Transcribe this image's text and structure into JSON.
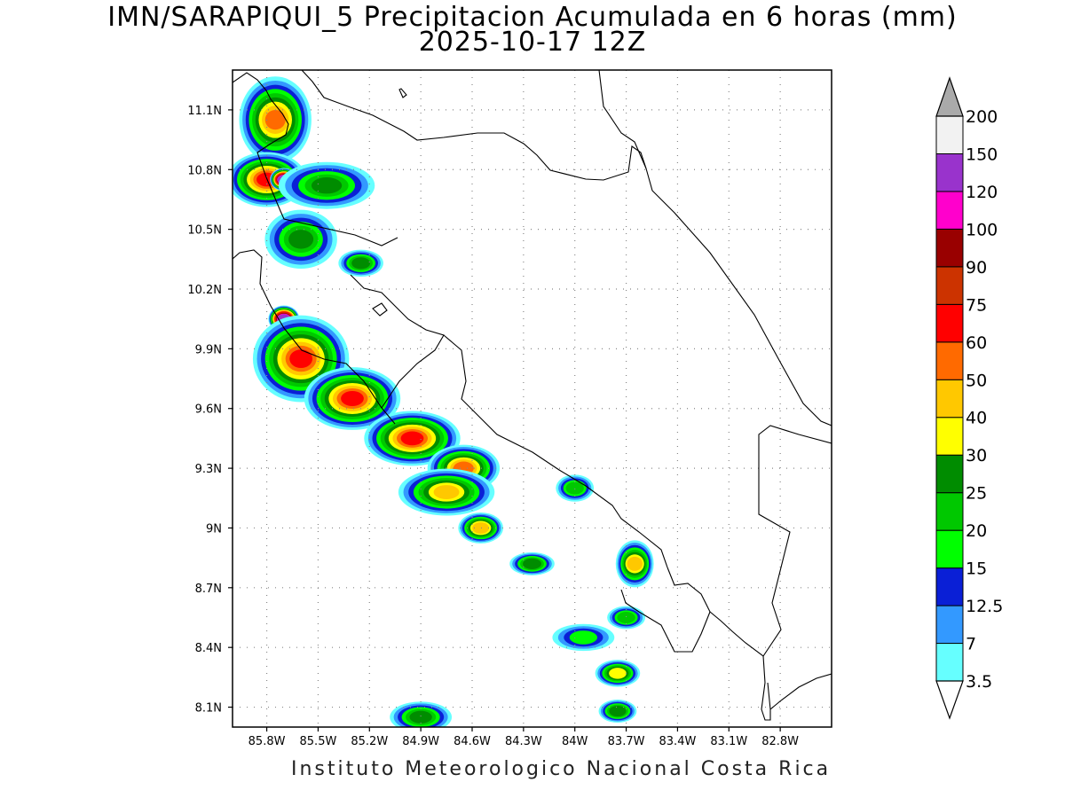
{
  "title": {
    "line1": "IMN/SARAPIQUI_5 Precipitacion Acumulada en 6 horas (mm)",
    "line2": "2025-10-17 12Z"
  },
  "footer": "Instituto Meteorologico Nacional Costa Rica",
  "map": {
    "region": "Costa Rica",
    "lon_range": [
      -86.0,
      -82.5
    ],
    "lat_range": [
      8.0,
      11.3
    ],
    "grid": true,
    "lat_ticks": [
      "11.1N",
      "10.8N",
      "10.5N",
      "10.2N",
      "9.9N",
      "9.6N",
      "9.3N",
      "9N",
      "8.7N",
      "8.4N",
      "8.1N"
    ],
    "lon_ticks": [
      "85.8W",
      "85.5W",
      "85.2W",
      "84.9W",
      "84.6W",
      "84.3W",
      "84W",
      "83.7W",
      "83.4W",
      "83.1W",
      "82.8W"
    ]
  },
  "colorbar": {
    "unit": "mm",
    "levels": [
      "3.5",
      "7",
      "12.5",
      "15",
      "20",
      "25",
      "30",
      "40",
      "50",
      "60",
      "75",
      "90",
      "100",
      "120",
      "150",
      "200"
    ],
    "colors": [
      "#66ffff",
      "#3399ff",
      "#0a1fd6",
      "#00ff00",
      "#00c800",
      "#008c00",
      "#ffff00",
      "#ffc800",
      "#ff6a00",
      "#ff0000",
      "#cc3300",
      "#990000",
      "#ff00cc",
      "#9933cc",
      "#f2f2f2"
    ],
    "extension_colors": {
      "low": "#ffffff",
      "high": "#aaaaaa"
    }
  },
  "chart_data": {
    "type": "heatmap",
    "title": "IMN/SARAPIQUI_5 Precipitacion Acumulada en 6 horas (mm)",
    "subtitle": "2025-10-17 12Z",
    "xlabel": "",
    "ylabel": "",
    "xlim": [
      -86.0,
      -82.5
    ],
    "ylim": [
      8.0,
      11.3
    ],
    "rain_cells": [
      {
        "lon": -85.75,
        "lat": 11.05,
        "rx": 0.18,
        "ry": 0.2,
        "level": 8
      },
      {
        "lon": -85.8,
        "lat": 10.75,
        "rx": 0.2,
        "ry": 0.12,
        "level": 9
      },
      {
        "lon": -85.7,
        "lat": 10.75,
        "rx": 0.05,
        "ry": 0.04,
        "level": 13
      },
      {
        "lon": -85.45,
        "lat": 10.72,
        "rx": 0.25,
        "ry": 0.1,
        "level": 5
      },
      {
        "lon": -85.6,
        "lat": 10.45,
        "rx": 0.18,
        "ry": 0.13,
        "level": 5
      },
      {
        "lon": -85.25,
        "lat": 10.33,
        "rx": 0.1,
        "ry": 0.05,
        "level": 5
      },
      {
        "lon": -85.7,
        "lat": 10.05,
        "rx": 0.06,
        "ry": 0.05,
        "level": 13
      },
      {
        "lon": -85.6,
        "lat": 9.85,
        "rx": 0.25,
        "ry": 0.2,
        "level": 9
      },
      {
        "lon": -85.3,
        "lat": 9.65,
        "rx": 0.25,
        "ry": 0.14,
        "level": 9
      },
      {
        "lon": -84.95,
        "lat": 9.45,
        "rx": 0.25,
        "ry": 0.12,
        "level": 9
      },
      {
        "lon": -84.65,
        "lat": 9.3,
        "rx": 0.18,
        "ry": 0.1,
        "level": 8
      },
      {
        "lon": -84.75,
        "lat": 9.18,
        "rx": 0.25,
        "ry": 0.1,
        "level": 7
      },
      {
        "lon": -84.55,
        "lat": 9.0,
        "rx": 0.1,
        "ry": 0.06,
        "level": 7
      },
      {
        "lon": -84.25,
        "lat": 8.82,
        "rx": 0.1,
        "ry": 0.04,
        "level": 5
      },
      {
        "lon": -84.0,
        "lat": 9.2,
        "rx": 0.08,
        "ry": 0.05,
        "level": 4
      },
      {
        "lon": -83.65,
        "lat": 8.82,
        "rx": 0.08,
        "ry": 0.1,
        "level": 7
      },
      {
        "lon": -83.7,
        "lat": 8.55,
        "rx": 0.08,
        "ry": 0.04,
        "level": 4
      },
      {
        "lon": -83.95,
        "lat": 8.45,
        "rx": 0.15,
        "ry": 0.05,
        "level": 3
      },
      {
        "lon": -83.75,
        "lat": 8.27,
        "rx": 0.1,
        "ry": 0.05,
        "level": 6
      },
      {
        "lon": -83.75,
        "lat": 8.08,
        "rx": 0.08,
        "ry": 0.04,
        "level": 5
      },
      {
        "lon": -84.9,
        "lat": 8.05,
        "rx": 0.15,
        "ry": 0.06,
        "level": 5
      }
    ]
  }
}
